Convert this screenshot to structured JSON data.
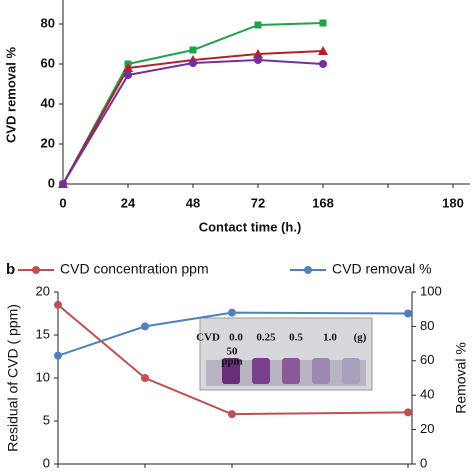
{
  "chart_data": [
    {
      "type": "line",
      "y_label": "CVD removal %",
      "x_label": "Contact time (h.)",
      "categories": [
        "0",
        "24",
        "48",
        "72",
        "168",
        null,
        "180"
      ],
      "ylim": [
        0,
        92
      ],
      "yticks": [
        0,
        20,
        40,
        60,
        80
      ],
      "series": [
        {
          "color": "#1fa34a",
          "marker": "square",
          "values": [
            0,
            60,
            67,
            79.5,
            80.5,
            null,
            null
          ]
        },
        {
          "color": "#b3202c",
          "marker": "triangle",
          "values": [
            0,
            58,
            62,
            65,
            66.5,
            null,
            null
          ]
        },
        {
          "color": "#7030a0",
          "marker": "circle",
          "values": [
            0,
            54.5,
            60.5,
            62,
            60,
            null,
            null
          ]
        }
      ]
    },
    {
      "type": "line",
      "panel_label": "b",
      "y_label": "Residual of CVD ( ppm)",
      "y2_label": "Removal %",
      "categories": [
        null,
        null,
        null,
        null
      ],
      "ylim": [
        0,
        20
      ],
      "yticks": [
        0,
        5,
        10,
        15,
        20
      ],
      "y2lim": [
        0,
        100
      ],
      "y2ticks": [
        0,
        20,
        40,
        60,
        80,
        100
      ],
      "inset_labels": [
        "CVD",
        "0.0",
        "0.25",
        "0.5",
        "1.0",
        "(g)",
        "50",
        "ppm"
      ],
      "series": [
        {
          "name": "CVD concentration ppm",
          "color": "#c0504d",
          "marker": "circle",
          "values": [
            18.5,
            10,
            5.8,
            6
          ]
        },
        {
          "name": "CVD removal %",
          "color": "#4f81bd",
          "marker": "circle",
          "axis": "y2",
          "values": [
            63,
            80,
            88,
            87.5
          ]
        }
      ]
    }
  ]
}
